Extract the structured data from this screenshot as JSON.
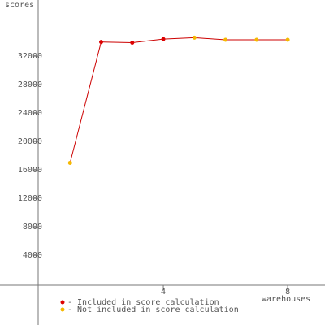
{
  "chart_data": {
    "type": "line",
    "y_label": "scores",
    "x_label": "warehouses",
    "x": [
      1,
      2,
      3,
      4,
      5,
      6,
      7,
      8
    ],
    "line_color": "#cc0000",
    "series": [
      {
        "name": "- Included in score calculation",
        "color": "#dd0000",
        "values": [
          null,
          34000,
          33900,
          34400,
          null,
          null,
          null,
          null
        ]
      },
      {
        "name": "- Not included in score calculation",
        "color": "#f5b800",
        "values": [
          17000,
          null,
          null,
          null,
          34600,
          34300,
          34300,
          34300
        ]
      }
    ],
    "xlim": [
      0,
      9.2
    ],
    "ylim": [
      -5800,
      39900
    ],
    "xticks": [
      4,
      8
    ],
    "yticks": [
      4000,
      8000,
      12000,
      16000,
      20000,
      24000,
      28000,
      32000
    ]
  }
}
